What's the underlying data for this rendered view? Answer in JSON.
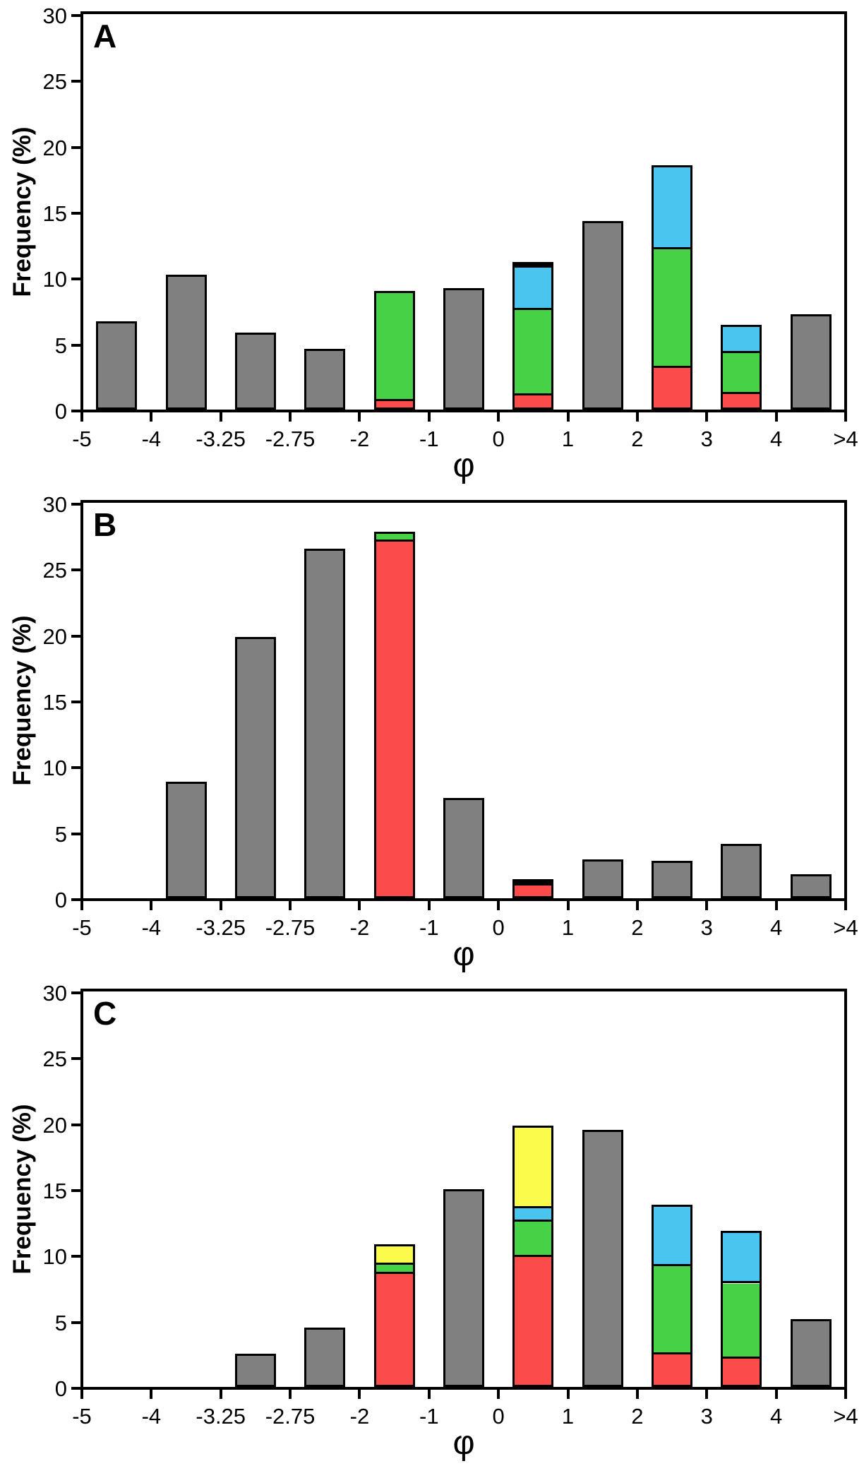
{
  "figure": {
    "ylabel": "Frequency (%)",
    "xlabel": "φ",
    "y_ticks": [
      0,
      5,
      10,
      15,
      20,
      25,
      30
    ],
    "ymax": 30,
    "x_tick_labels": [
      "-5",
      "-4",
      "-3.25",
      "-2.75",
      "-2",
      "-1",
      "0",
      "1",
      "2",
      "3",
      "4",
      ">4"
    ],
    "colors": {
      "gray": "#808080",
      "red": "#FB4B4B",
      "green": "#47D147",
      "blue": "#4AC5EF",
      "yellow": "#FBFB4B",
      "black": "#000000"
    }
  },
  "chart_data": [
    {
      "type": "bar",
      "stacked": true,
      "panel_label": "A",
      "xlabel": "φ",
      "ylabel": "Frequency (%)",
      "ylim": [
        0,
        30
      ],
      "y_ticks": [
        0,
        5,
        10,
        15,
        20,
        25,
        30
      ],
      "x_tick_labels": [
        "-5",
        "-4",
        "-3.25",
        "-2.75",
        "-2",
        "-1",
        "0",
        "1",
        "2",
        "3",
        "4",
        ">4"
      ],
      "bars_note": "each bar occupies the bin between consecutive x ticks; segments listed bottom to top, values in percent",
      "bars": [
        {
          "bin": "-5 to -4",
          "segments": [
            {
              "color": "gray",
              "value": 6.4
            }
          ]
        },
        {
          "bin": "-4 to -3.25",
          "segments": [
            {
              "color": "gray",
              "value": 9.9
            }
          ]
        },
        {
          "bin": "-3.25 to -2.75",
          "segments": [
            {
              "color": "gray",
              "value": 5.5
            }
          ]
        },
        {
          "bin": "-2.75 to -2",
          "segments": [
            {
              "color": "gray",
              "value": 4.3
            }
          ]
        },
        {
          "bin": "-2 to -1",
          "segments": [
            {
              "color": "red",
              "value": 0.5
            },
            {
              "color": "green",
              "value": 8.2
            }
          ]
        },
        {
          "bin": "-1 to 0",
          "segments": [
            {
              "color": "gray",
              "value": 8.9
            }
          ]
        },
        {
          "bin": "0 to 1",
          "segments": [
            {
              "color": "red",
              "value": 0.9
            },
            {
              "color": "green",
              "value": 6.5
            },
            {
              "color": "blue",
              "value": 3.2
            },
            {
              "color": "black",
              "value": 0.3
            }
          ]
        },
        {
          "bin": "1 to 2",
          "segments": [
            {
              "color": "gray",
              "value": 14.0
            }
          ]
        },
        {
          "bin": "2 to 3",
          "segments": [
            {
              "color": "red",
              "value": 3.0
            },
            {
              "color": "green",
              "value": 9.0
            },
            {
              "color": "blue",
              "value": 6.2
            }
          ]
        },
        {
          "bin": "3 to 4",
          "segments": [
            {
              "color": "red",
              "value": 1.0
            },
            {
              "color": "green",
              "value": 3.1
            },
            {
              "color": "blue",
              "value": 2.0
            }
          ]
        },
        {
          "bin": "4 to >4",
          "segments": [
            {
              "color": "gray",
              "value": 6.9
            }
          ]
        }
      ]
    },
    {
      "type": "bar",
      "stacked": true,
      "panel_label": "B",
      "xlabel": "φ",
      "ylabel": "Frequency (%)",
      "ylim": [
        0,
        30
      ],
      "y_ticks": [
        0,
        5,
        10,
        15,
        20,
        25,
        30
      ],
      "x_tick_labels": [
        "-5",
        "-4",
        "-3.25",
        "-2.75",
        "-2",
        "-1",
        "0",
        "1",
        "2",
        "3",
        "4",
        ">4"
      ],
      "bars_note": "each bar occupies the bin between consecutive x ticks; segments listed bottom to top, values in percent",
      "bars": [
        {
          "bin": "-5 to -4",
          "segments": []
        },
        {
          "bin": "-4 to -3.25",
          "segments": [
            {
              "color": "gray",
              "value": 8.5
            }
          ]
        },
        {
          "bin": "-3.25 to -2.75",
          "segments": [
            {
              "color": "gray",
              "value": 19.5
            }
          ]
        },
        {
          "bin": "-2.75 to -2",
          "segments": [
            {
              "color": "gray",
              "value": 26.2
            }
          ]
        },
        {
          "bin": "-2 to -1",
          "segments": [
            {
              "color": "red",
              "value": 26.9
            },
            {
              "color": "green",
              "value": 0.6
            }
          ]
        },
        {
          "bin": "-1 to 0",
          "segments": [
            {
              "color": "gray",
              "value": 7.3
            }
          ]
        },
        {
          "bin": "0 to 1",
          "segments": [
            {
              "color": "red",
              "value": 0.8
            },
            {
              "color": "black",
              "value": 0.3
            }
          ]
        },
        {
          "bin": "1 to 2",
          "segments": [
            {
              "color": "gray",
              "value": 2.6
            }
          ]
        },
        {
          "bin": "2 to 3",
          "segments": [
            {
              "color": "gray",
              "value": 2.5
            }
          ]
        },
        {
          "bin": "3 to 4",
          "segments": [
            {
              "color": "gray",
              "value": 3.8
            }
          ]
        },
        {
          "bin": "4 to >4",
          "segments": [
            {
              "color": "gray",
              "value": 1.5
            }
          ]
        }
      ]
    },
    {
      "type": "bar",
      "stacked": true,
      "panel_label": "C",
      "xlabel": "φ",
      "ylabel": "Frequency (%)",
      "ylim": [
        0,
        30
      ],
      "y_ticks": [
        0,
        5,
        10,
        15,
        20,
        25,
        30
      ],
      "x_tick_labels": [
        "-5",
        "-4",
        "-3.25",
        "-2.75",
        "-2",
        "-1",
        "0",
        "1",
        "2",
        "3",
        "4",
        ">4"
      ],
      "bars_note": "each bar occupies the bin between consecutive x ticks; segments listed bottom to top, values in percent",
      "bars": [
        {
          "bin": "-5 to -4",
          "segments": []
        },
        {
          "bin": "-4 to -3.25",
          "segments": []
        },
        {
          "bin": "-3.25 to -2.75",
          "segments": [
            {
              "color": "gray",
              "value": 2.2
            }
          ]
        },
        {
          "bin": "-2.75 to -2",
          "segments": [
            {
              "color": "gray",
              "value": 4.2
            }
          ]
        },
        {
          "bin": "-2 to -1",
          "segments": [
            {
              "color": "red",
              "value": 8.4
            },
            {
              "color": "green",
              "value": 0.7
            },
            {
              "color": "yellow",
              "value": 1.4
            }
          ]
        },
        {
          "bin": "-1 to 0",
          "segments": [
            {
              "color": "gray",
              "value": 14.7
            }
          ]
        },
        {
          "bin": "0 to 1",
          "segments": [
            {
              "color": "red",
              "value": 9.7
            },
            {
              "color": "green",
              "value": 2.7
            },
            {
              "color": "blue",
              "value": 1.0
            },
            {
              "color": "yellow",
              "value": 6.1
            }
          ]
        },
        {
          "bin": "1 to 2",
          "segments": [
            {
              "color": "gray",
              "value": 19.2
            }
          ]
        },
        {
          "bin": "2 to 3",
          "segments": [
            {
              "color": "red",
              "value": 2.3
            },
            {
              "color": "green",
              "value": 6.7
            },
            {
              "color": "blue",
              "value": 4.5
            }
          ]
        },
        {
          "bin": "3 to 4",
          "segments": [
            {
              "color": "red",
              "value": 2.0
            },
            {
              "color": "green",
              "value": 5.7
            },
            {
              "color": "blue",
              "value": 3.8
            }
          ]
        },
        {
          "bin": "4 to >4",
          "segments": [
            {
              "color": "gray",
              "value": 4.8
            }
          ]
        }
      ]
    }
  ]
}
